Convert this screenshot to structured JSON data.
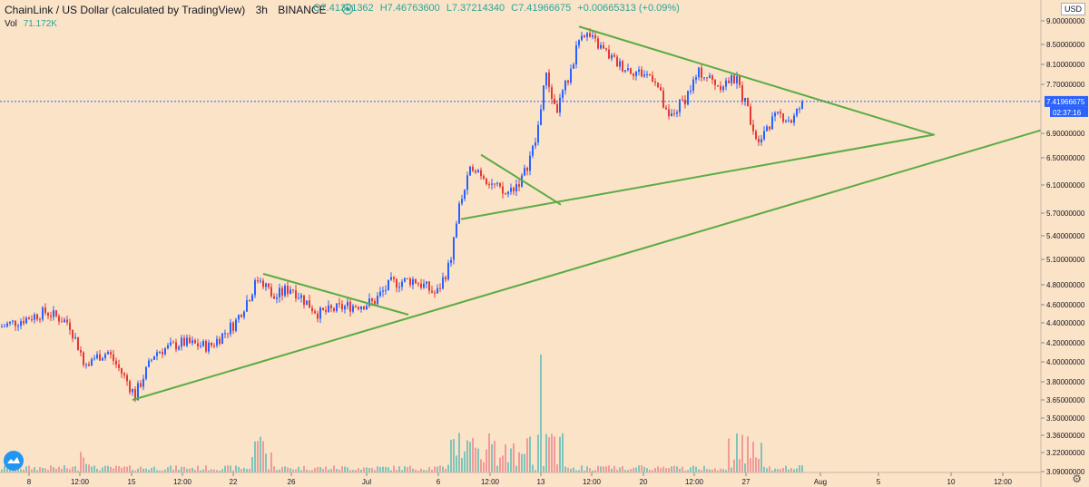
{
  "header": {
    "title": "ChainLink / US Dollar (calculated by TradingView)",
    "interval": "3h",
    "exchange": "BINANCE",
    "open": "O7.41301362",
    "high": "H7.46763600",
    "low": "L7.37214340",
    "close": "C7.41966675",
    "change": "+0.00665313 (+0.09%)"
  },
  "volume": {
    "label": "Vol",
    "value": "71.172K"
  },
  "currency_badge": "USD",
  "last_price_label": "7.41966675",
  "countdown_label": "02:37:16",
  "colors": {
    "background": "#fbe3c8",
    "up": "#2962ff",
    "down": "#e53935",
    "trendline": "#5aac44",
    "price_line": "#2962ff",
    "vol_up": "#80c4bc",
    "vol_down": "#f19a9a"
  },
  "chart_data": {
    "type": "candlestick",
    "title": "ChainLink / US Dollar (calculated by TradingView)",
    "ylim": [
      3.05,
      9.2
    ],
    "y_ticks": [
      "9.00000000",
      "8.50000000",
      "8.10000000",
      "7.70000000",
      "6.90000000",
      "6.50000000",
      "6.10000000",
      "5.70000000",
      "5.40000000",
      "5.10000000",
      "4.80000000",
      "4.60000000",
      "4.40000000",
      "4.20000000",
      "4.00000000",
      "3.80000000",
      "3.65000000",
      "3.50000000",
      "3.36000000",
      "3.22000000",
      "3.09000000"
    ],
    "x_ticks": [
      "8",
      "12:00",
      "15",
      "12:00",
      "22",
      "26",
      "Jul",
      "6",
      "12:00",
      "13",
      "12:00",
      "20",
      "12:00",
      "27",
      "Aug",
      "5",
      "10",
      "12:00"
    ],
    "last_price": 7.41966675,
    "series": [
      {
        "name": "price",
        "points": [
          [
            0,
            4.36
          ],
          [
            25,
            4.44
          ],
          [
            50,
            4.52
          ],
          [
            75,
            4.4
          ],
          [
            92,
            4.0
          ],
          [
            118,
            4.1
          ],
          [
            148,
            3.68
          ],
          [
            170,
            4.1
          ],
          [
            200,
            4.2
          ],
          [
            230,
            4.16
          ],
          [
            258,
            4.4
          ],
          [
            285,
            4.9
          ],
          [
            300,
            4.66
          ],
          [
            320,
            4.78
          ],
          [
            350,
            4.5
          ],
          [
            380,
            4.58
          ],
          [
            410,
            4.62
          ],
          [
            430,
            4.82
          ],
          [
            455,
            4.86
          ],
          [
            480,
            4.7
          ],
          [
            495,
            5.05
          ],
          [
            505,
            5.8
          ],
          [
            520,
            6.4
          ],
          [
            535,
            6.2
          ],
          [
            555,
            5.95
          ],
          [
            575,
            6.2
          ],
          [
            590,
            6.8
          ],
          [
            600,
            7.9
          ],
          [
            612,
            7.25
          ],
          [
            625,
            7.8
          ],
          [
            640,
            8.8
          ],
          [
            660,
            8.45
          ],
          [
            680,
            8.1
          ],
          [
            700,
            7.95
          ],
          [
            720,
            7.85
          ],
          [
            735,
            7.1
          ],
          [
            755,
            7.5
          ],
          [
            770,
            7.95
          ],
          [
            790,
            7.7
          ],
          [
            810,
            7.8
          ],
          [
            825,
            7.2
          ],
          [
            833,
            6.8
          ],
          [
            845,
            7.05
          ],
          [
            860,
            7.2
          ],
          [
            872,
            7.1
          ],
          [
            884,
            7.42
          ]
        ]
      }
    ],
    "volume": {
      "label": "Vol"
    }
  }
}
